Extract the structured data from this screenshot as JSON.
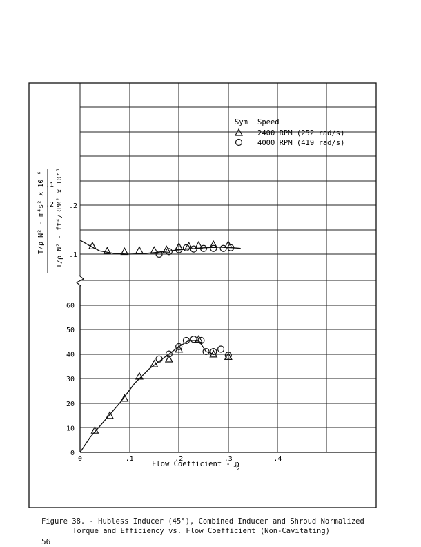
{
  "page_number": "56",
  "caption": {
    "line1": "Figure 38. - Hubless Inducer (45°), Combined Inducer and Shroud Normalized",
    "line2": "Torque and Efficiency vs. Flow Coefficient (Non-Cavitating)"
  },
  "colors": {
    "ink": "#111111",
    "grid": "#222222",
    "paper": "#ffffff"
  },
  "chart_data": {
    "type": "scatter",
    "xlabel": "Flow Coefficient - φ",
    "xlabel_subscript": "I2",
    "x_ticks": [
      "0",
      ".1",
      ".2",
      ".3",
      ".4"
    ],
    "xlim": [
      0,
      0.6
    ],
    "legend": {
      "placement": "top-right",
      "header_sym": "Sym",
      "header_speed": "Speed",
      "entries": [
        {
          "marker": "triangle",
          "label": "2400 RPM (252 rad/s)"
        },
        {
          "marker": "circle",
          "label": "4000 RPM (419 rad/s)"
        }
      ]
    },
    "torque_panel": {
      "ylabel_si": "T/ρ N² - m⁴s² x 10⁺⁶",
      "ylabel_en": "T/ρ N² - ft⁴/RPM² x 10⁺⁶",
      "ticks_si": [
        ".1",
        ".2"
      ],
      "ticks_en": [
        ".1",
        ".2"
      ],
      "series": [
        {
          "name": "2400 RPM (252 rad/s)",
          "marker": "triangle",
          "x": [
            0.025,
            0.055,
            0.09,
            0.12,
            0.15,
            0.175,
            0.2,
            0.22,
            0.24,
            0.27,
            0.3
          ],
          "y": [
            0.128,
            0.12,
            0.119,
            0.121,
            0.121,
            0.122,
            0.127,
            0.128,
            0.129,
            0.13,
            0.13
          ]
        },
        {
          "name": "4000 RPM (419 rad/s)",
          "marker": "circle",
          "x": [
            0.16,
            0.18,
            0.2,
            0.215,
            0.23,
            0.25,
            0.27,
            0.29,
            0.305
          ],
          "y": [
            0.115,
            0.119,
            0.122,
            0.125,
            0.123,
            0.124,
            0.124,
            0.124,
            0.125
          ]
        }
      ],
      "fit": {
        "x": [
          0,
          0.02,
          0.04,
          0.07,
          0.1,
          0.13,
          0.16,
          0.19,
          0.22,
          0.25,
          0.28,
          0.31,
          0.325
        ],
        "y": [
          0.137,
          0.128,
          0.12,
          0.116,
          0.115,
          0.116,
          0.118,
          0.121,
          0.123,
          0.125,
          0.126,
          0.125,
          0.124
        ]
      }
    },
    "efficiency_panel": {
      "y_ticks": [
        "0",
        "10",
        "20",
        "30",
        "40",
        "50",
        "60"
      ],
      "ylim": [
        0,
        70
      ],
      "series": [
        {
          "name": "2400 RPM (252 rad/s)",
          "marker": "triangle",
          "x": [
            0.03,
            0.06,
            0.09,
            0.12,
            0.15,
            0.18,
            0.2,
            0.24,
            0.27,
            0.3
          ],
          "y": [
            9,
            15,
            22,
            31,
            36,
            38,
            42,
            46,
            40,
            39
          ]
        },
        {
          "name": "4000 RPM (419 rad/s)",
          "marker": "circle",
          "x": [
            0.16,
            0.18,
            0.2,
            0.215,
            0.23,
            0.245,
            0.255,
            0.27,
            0.285,
            0.3
          ],
          "y": [
            38,
            40,
            43,
            45.5,
            46,
            45.5,
            41,
            41,
            42,
            39.5
          ]
        }
      ],
      "fit": {
        "x": [
          0,
          0.02,
          0.05,
          0.08,
          0.11,
          0.14,
          0.17,
          0.2,
          0.22,
          0.24,
          0.255,
          0.27,
          0.29,
          0.31
        ],
        "y": [
          0,
          6,
          13,
          20,
          28,
          34,
          38.5,
          43,
          45.5,
          45.5,
          41,
          40,
          40,
          40
        ]
      }
    }
  }
}
